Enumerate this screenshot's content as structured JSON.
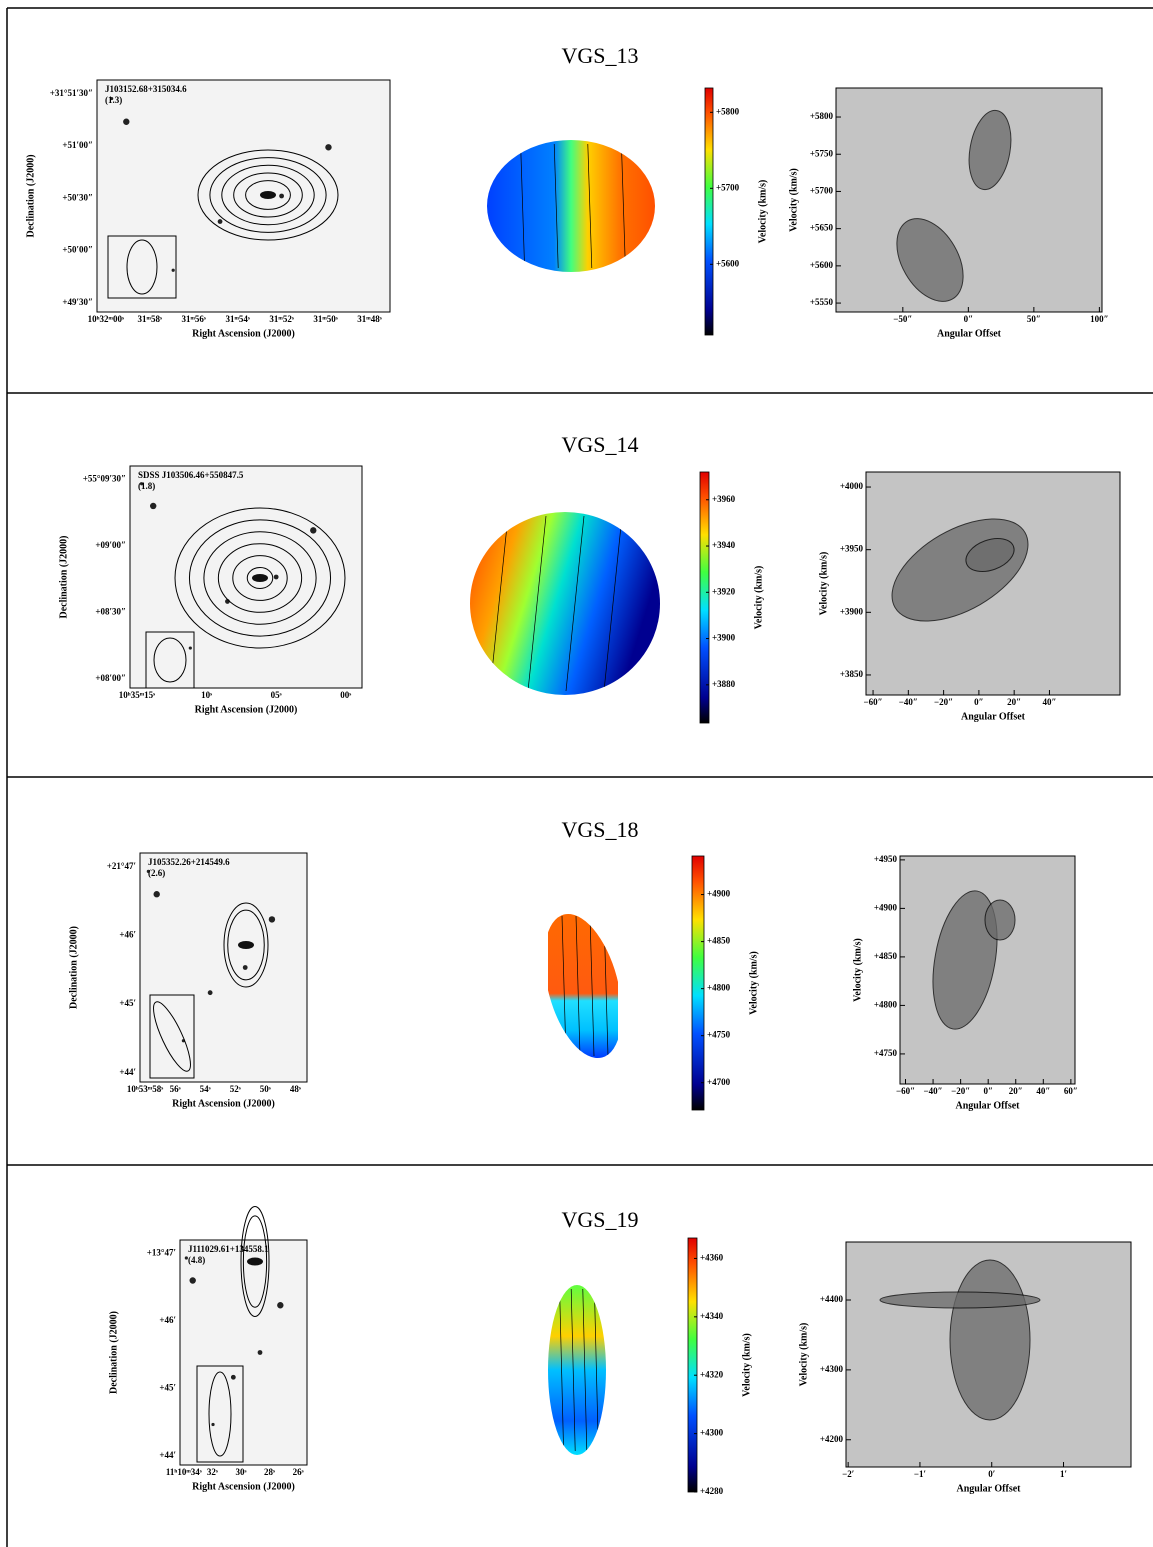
{
  "rows": [
    {
      "title": "VGS_13",
      "optical": {
        "name": "J103152.68+315034.6",
        "note": "(1.3)",
        "xlabel": "Right Ascension (J2000)",
        "ylabel": "Declination (J2000)",
        "xticks": [
          "10ʰ32ᵐ00ˢ",
          "31ᵐ58ˢ",
          "31ᵐ56ˢ",
          "31ᵐ54ˢ",
          "31ᵐ52ˢ",
          "31ᵐ50ˢ",
          "31ᵐ48ˢ"
        ],
        "yticks": [
          "+31°51′30″",
          "+51′00″",
          "+50′30″",
          "+50′00″",
          "+49′30″"
        ]
      },
      "velocity_field": {
        "label": "Velocity (km/s)",
        "clim": [
          5507,
          5832
        ],
        "ticks": [
          {
            "value": 5600,
            "label": "+5600"
          },
          {
            "value": 5700,
            "label": "+5700"
          },
          {
            "value": 5800,
            "label": "+5800"
          }
        ]
      },
      "pv": {
        "xlabel": "Angular Offset",
        "ylabel": "Velocity (km/s)",
        "xlim": [
          -101,
          102
        ],
        "ylim": [
          5538,
          5839
        ],
        "xticks": [
          {
            "value": -50,
            "label": "−50″"
          },
          {
            "value": 0,
            "label": "0″"
          },
          {
            "value": 50,
            "label": "50″"
          },
          {
            "value": 100,
            "label": "100″"
          }
        ],
        "yticks": [
          {
            "value": 5550,
            "label": "+5550"
          },
          {
            "value": 5600,
            "label": "+5600"
          },
          {
            "value": 5650,
            "label": "+5650"
          },
          {
            "value": 5700,
            "label": "+5700"
          },
          {
            "value": 5750,
            "label": "+5750"
          },
          {
            "value": 5800,
            "label": "+5800"
          }
        ]
      }
    },
    {
      "title": "VGS_14",
      "optical": {
        "name": "SDSS J103506.46+550847.5",
        "note": "(1.8)",
        "xlabel": "Right Ascension (J2000)",
        "ylabel": "Declination (J2000)",
        "xticks": [
          "10ʰ35ᵐ15ˢ",
          "10ˢ",
          "05ˢ",
          "00ˢ"
        ],
        "yticks": [
          "+55°09′30″",
          "+09′00″",
          "+08′30″",
          "+08′00″"
        ]
      },
      "velocity_field": {
        "label": "Velocity (km/s)",
        "clim": [
          3863.5,
          3972
        ],
        "ticks": [
          {
            "value": 3880,
            "label": "+3880"
          },
          {
            "value": 3900,
            "label": "+3900"
          },
          {
            "value": 3920,
            "label": "+3920"
          },
          {
            "value": 3940,
            "label": "+3940"
          },
          {
            "value": 3960,
            "label": "+3960"
          }
        ]
      },
      "pv": {
        "xlabel": "Angular Offset",
        "ylabel": "Velocity (km/s)",
        "xlim": [
          -64,
          80
        ],
        "ylim": [
          3834,
          4012
        ],
        "xticks": [
          {
            "value": -60,
            "label": "−60″"
          },
          {
            "value": -40,
            "label": "−40″"
          },
          {
            "value": -20,
            "label": "−20″"
          },
          {
            "value": 0,
            "label": "0″"
          },
          {
            "value": 20,
            "label": "20″"
          },
          {
            "value": 40,
            "label": "40″"
          }
        ],
        "yticks": [
          {
            "value": 3850,
            "label": "+3850"
          },
          {
            "value": 3900,
            "label": "+3900"
          },
          {
            "value": 3950,
            "label": "+3950"
          },
          {
            "value": 4000,
            "label": "+4000"
          }
        ]
      }
    },
    {
      "title": "VGS_18",
      "optical": {
        "name": "J105352.26+214549.6",
        "note": "(2.6)",
        "xlabel": "Right Ascension (J2000)",
        "ylabel": "Declination (J2000)",
        "xticks": [
          "10ʰ53ᵐ58ˢ",
          "56ˢ",
          "54ˢ",
          "52ˢ",
          "50ˢ",
          "48ˢ"
        ],
        "yticks": [
          "+21°47′",
          "+46′",
          "+45′",
          "+44′"
        ]
      },
      "velocity_field": {
        "label": "Velocity (km/s)",
        "clim": [
          4671,
          4941
        ],
        "ticks": [
          {
            "value": 4700,
            "label": "+4700"
          },
          {
            "value": 4750,
            "label": "+4750"
          },
          {
            "value": 4800,
            "label": "+4800"
          },
          {
            "value": 4850,
            "label": "+4850"
          },
          {
            "value": 4900,
            "label": "+4900"
          }
        ]
      },
      "pv": {
        "xlabel": "Angular Offset",
        "ylabel": "Velocity (km/s)",
        "xlim": [
          -64,
          63
        ],
        "ylim": [
          4719,
          4954
        ],
        "xticks": [
          {
            "value": -60,
            "label": "−60″"
          },
          {
            "value": -40,
            "label": "−40″"
          },
          {
            "value": -20,
            "label": "−20″"
          },
          {
            "value": 0,
            "label": "0″"
          },
          {
            "value": 20,
            "label": "20″"
          },
          {
            "value": 40,
            "label": "40″"
          },
          {
            "value": 60,
            "label": "60″"
          }
        ],
        "yticks": [
          {
            "value": 4750,
            "label": "+4750"
          },
          {
            "value": 4800,
            "label": "+4800"
          },
          {
            "value": 4850,
            "label": "+4850"
          },
          {
            "value": 4900,
            "label": "+4900"
          },
          {
            "value": 4950,
            "label": "+4950"
          }
        ]
      }
    },
    {
      "title": "VGS_19",
      "optical": {
        "name": "J111029.61+134558.1",
        "note": "(4.8)",
        "xlabel": "Right Ascension (J2000)",
        "ylabel": "Declination (J2000)",
        "xticks": [
          "11ʰ10ᵐ34ˢ",
          "32ˢ",
          "30ˢ",
          "28ˢ",
          "26ˢ"
        ],
        "yticks": [
          "+13°47′",
          "+46′",
          "+45′",
          "+44′"
        ]
      },
      "velocity_field": {
        "label": "Velocity (km/s)",
        "clim": [
          4280,
          4367
        ],
        "ticks": [
          {
            "value": 4280,
            "label": "+4280"
          },
          {
            "value": 4300,
            "label": "+4300"
          },
          {
            "value": 4320,
            "label": "+4320"
          },
          {
            "value": 4340,
            "label": "+4340"
          },
          {
            "value": 4360,
            "label": "+4360"
          }
        ]
      },
      "pv": {
        "xlabel": "Angular Offset",
        "ylabel": "Velocity (km/s)",
        "xlim": [
          -2.03,
          1.94
        ],
        "ylim": [
          4161,
          4483
        ],
        "xticks": [
          {
            "value": -2,
            "label": "−2′"
          },
          {
            "value": -1,
            "label": "−1′"
          },
          {
            "value": 0,
            "label": "0′"
          },
          {
            "value": 1,
            "label": "1′"
          }
        ],
        "yticks": [
          {
            "value": 4200,
            "label": "+4200"
          },
          {
            "value": 4300,
            "label": "+4300"
          },
          {
            "value": 4400,
            "label": "+4400"
          }
        ]
      }
    }
  ]
}
